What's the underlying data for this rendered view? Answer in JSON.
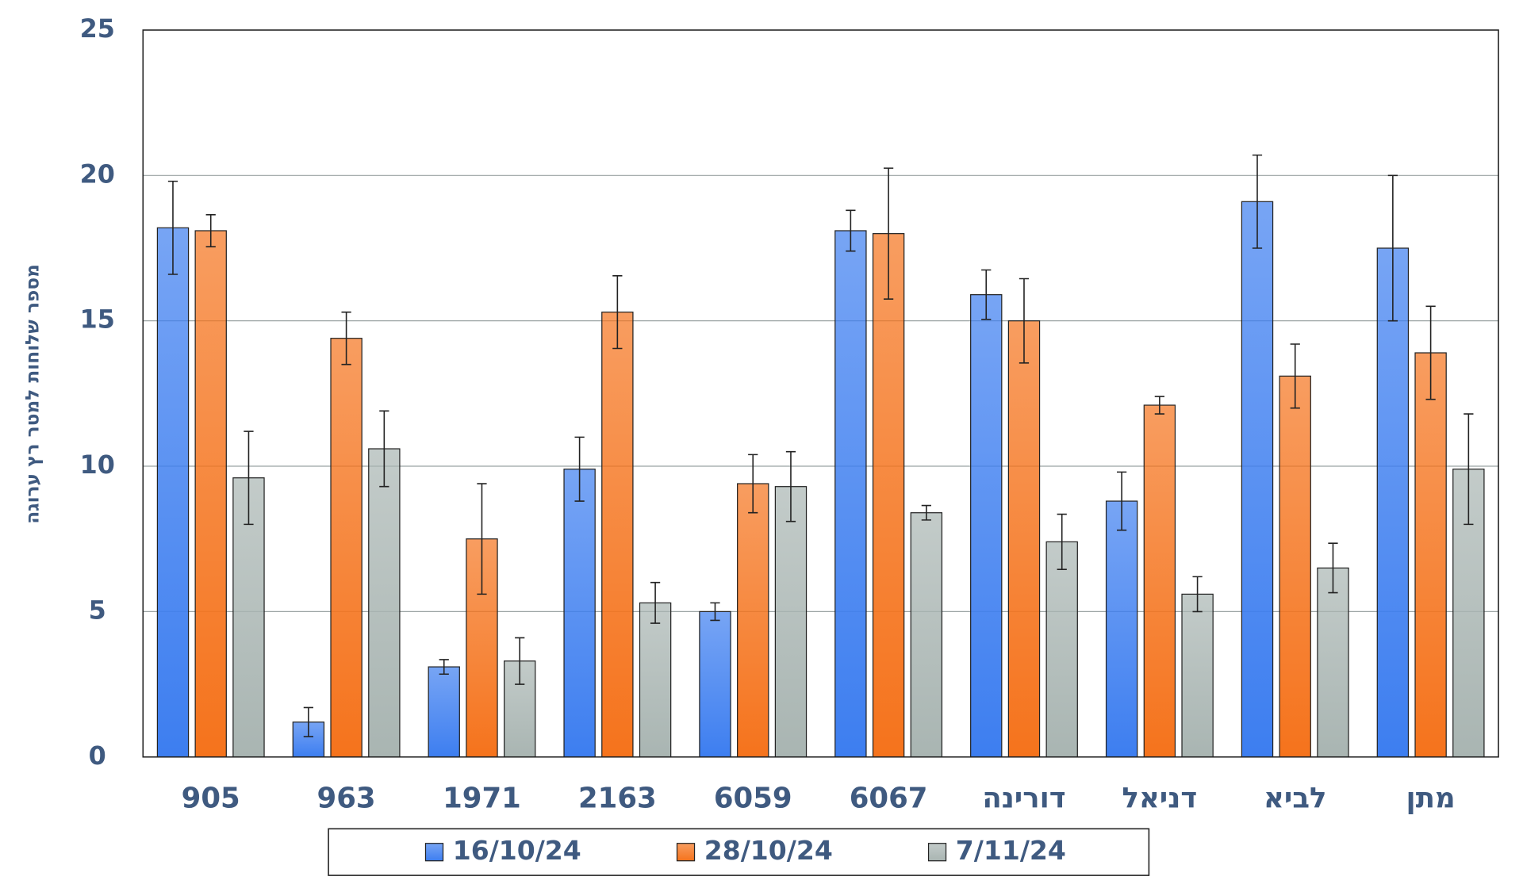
{
  "chart_data": {
    "type": "bar",
    "y_label": "מספר שלוחות למטר רץ ערוגה",
    "categories": [
      "905",
      "963",
      "1971",
      "2163",
      "6059",
      "6067",
      "דורינה",
      "דניאל",
      "לביא",
      "מתן"
    ],
    "series": [
      {
        "name": "16/10/24",
        "color": "#3d7ef0",
        "values": [
          18.2,
          1.2,
          3.1,
          9.9,
          5.0,
          18.1,
          15.9,
          8.8,
          19.1,
          17.5
        ],
        "errors": [
          1.6,
          0.5,
          0.25,
          1.1,
          0.3,
          0.7,
          0.85,
          1.0,
          1.6,
          2.5
        ]
      },
      {
        "name": "28/10/24",
        "color": "#f5731c",
        "values": [
          18.1,
          14.4,
          7.5,
          15.3,
          9.4,
          18.0,
          15.0,
          12.1,
          13.1,
          13.9
        ],
        "errors": [
          0.55,
          0.9,
          1.9,
          1.25,
          1.0,
          2.25,
          1.45,
          0.3,
          1.1,
          1.6
        ]
      },
      {
        "name": "7/11/24",
        "color": "#a9b5b2",
        "values": [
          9.6,
          10.6,
          3.3,
          5.3,
          9.3,
          8.4,
          7.4,
          5.6,
          6.5,
          9.9
        ],
        "errors": [
          1.6,
          1.3,
          0.8,
          0.7,
          1.2,
          0.25,
          0.95,
          0.6,
          0.85,
          1.9
        ]
      }
    ],
    "ylim": [
      0,
      25
    ],
    "yticks": [
      0,
      5,
      10,
      15,
      20,
      25
    ],
    "grid": true,
    "legend": "bottom"
  }
}
